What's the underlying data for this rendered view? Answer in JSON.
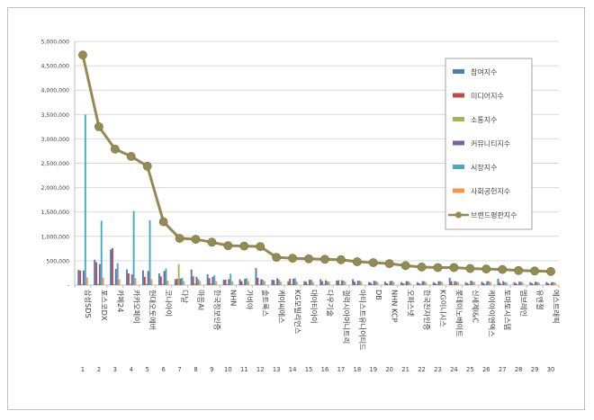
{
  "chart_data": {
    "type": "bar",
    "title": "",
    "xlabel": "",
    "ylabel": "",
    "ylim": [
      0,
      5000000
    ],
    "yticks": [
      0,
      500000,
      1000000,
      1500000,
      2000000,
      2500000,
      3000000,
      3500000,
      4000000,
      4500000,
      5000000
    ],
    "ytick_labels": [
      "-",
      "500,000",
      "1,000,000",
      "1,500,000",
      "2,000,000",
      "2,500,000",
      "3,000,000",
      "3,500,000",
      "4,000,000",
      "4,500,000",
      "5,000,000"
    ],
    "grid": true,
    "legend_position": "right",
    "categories": [
      "삼성SDS",
      "포스코DX",
      "카페24",
      "카카오페이",
      "현대오토에버",
      "코나아이",
      "다날",
      "마음AI",
      "한국정보인증",
      "NHN",
      "가비아",
      "솔트룩스",
      "케이씨에스",
      "KG모빌리언스",
      "대아티아이",
      "다우기술",
      "갤럭시아머니트리",
      "아티스트유나이티드",
      "DB",
      "NHN KCP",
      "오파스넷",
      "한국전자인증",
      "KG이니시스",
      "롯데이노베이트",
      "신세계I&C",
      "케이아이엔엑스",
      "토마토시스템",
      "엠브레인",
      "유엔젤",
      "에스트래픽"
    ],
    "rank_labels": [
      "1",
      "2",
      "3",
      "4",
      "5",
      "6",
      "7",
      "8",
      "9",
      "10",
      "11",
      "12",
      "13",
      "14",
      "15",
      "16",
      "17",
      "18",
      "19",
      "20",
      "21",
      "22",
      "23",
      "24",
      "25",
      "26",
      "27",
      "28",
      "29",
      "30"
    ],
    "series": [
      {
        "name": "참여지수",
        "color": "#4a7ebb",
        "values": [
          310000,
          520000,
          730000,
          320000,
          300000,
          240000,
          120000,
          320000,
          220000,
          110000,
          120000,
          350000,
          110000,
          80000,
          80000,
          120000,
          90000,
          120000,
          60000,
          70000,
          60000,
          60000,
          60000,
          150000,
          60000,
          70000,
          130000,
          60000,
          60000,
          60000
        ]
      },
      {
        "name": "미디어지수",
        "color": "#be4b48",
        "values": [
          300000,
          470000,
          760000,
          240000,
          170000,
          180000,
          130000,
          180000,
          140000,
          110000,
          80000,
          150000,
          100000,
          130000,
          70000,
          80000,
          100000,
          70000,
          50000,
          40000,
          40000,
          40000,
          40000,
          80000,
          40000,
          40000,
          50000,
          40000,
          40000,
          40000
        ]
      },
      {
        "name": "소통지수",
        "color": "#98b954",
        "values": [
          20000,
          30000,
          20000,
          30000,
          30000,
          30000,
          430000,
          30000,
          40000,
          20000,
          20000,
          20000,
          20000,
          20000,
          20000,
          20000,
          20000,
          20000,
          20000,
          20000,
          20000,
          20000,
          20000,
          20000,
          20000,
          20000,
          20000,
          20000,
          20000,
          20000
        ]
      },
      {
        "name": "커뮤니티지수",
        "color": "#7d60a0",
        "values": [
          300000,
          430000,
          330000,
          220000,
          290000,
          290000,
          130000,
          170000,
          170000,
          120000,
          130000,
          120000,
          140000,
          130000,
          110000,
          100000,
          100000,
          90000,
          90000,
          80000,
          80000,
          80000,
          80000,
          80000,
          90000,
          80000,
          80000,
          70000,
          70000,
          60000
        ]
      },
      {
        "name": "시장지수",
        "color": "#46aac5",
        "values": [
          3500000,
          1320000,
          450000,
          1520000,
          1330000,
          340000,
          150000,
          120000,
          200000,
          230000,
          140000,
          110000,
          110000,
          140000,
          110000,
          80000,
          90000,
          90000,
          80000,
          90000,
          80000,
          80000,
          80000,
          70000,
          80000,
          80000,
          60000,
          70000,
          60000,
          60000
        ]
      },
      {
        "name": "사회공헌지수",
        "color": "#f79646",
        "values": [
          160000,
          150000,
          120000,
          140000,
          120000,
          90000,
          80000,
          80000,
          80000,
          80000,
          80000,
          80000,
          70000,
          70000,
          70000,
          70000,
          70000,
          70000,
          60000,
          60000,
          60000,
          60000,
          60000,
          60000,
          60000,
          60000,
          50000,
          50000,
          50000,
          50000
        ]
      }
    ],
    "line": {
      "name": "브랜드평판지수",
      "color": "#948a54",
      "values": [
        4720000,
        3250000,
        2790000,
        2640000,
        2440000,
        1300000,
        960000,
        940000,
        880000,
        810000,
        800000,
        790000,
        570000,
        550000,
        540000,
        530000,
        520000,
        480000,
        460000,
        440000,
        400000,
        370000,
        360000,
        360000,
        340000,
        330000,
        320000,
        300000,
        290000,
        280000
      ]
    }
  }
}
